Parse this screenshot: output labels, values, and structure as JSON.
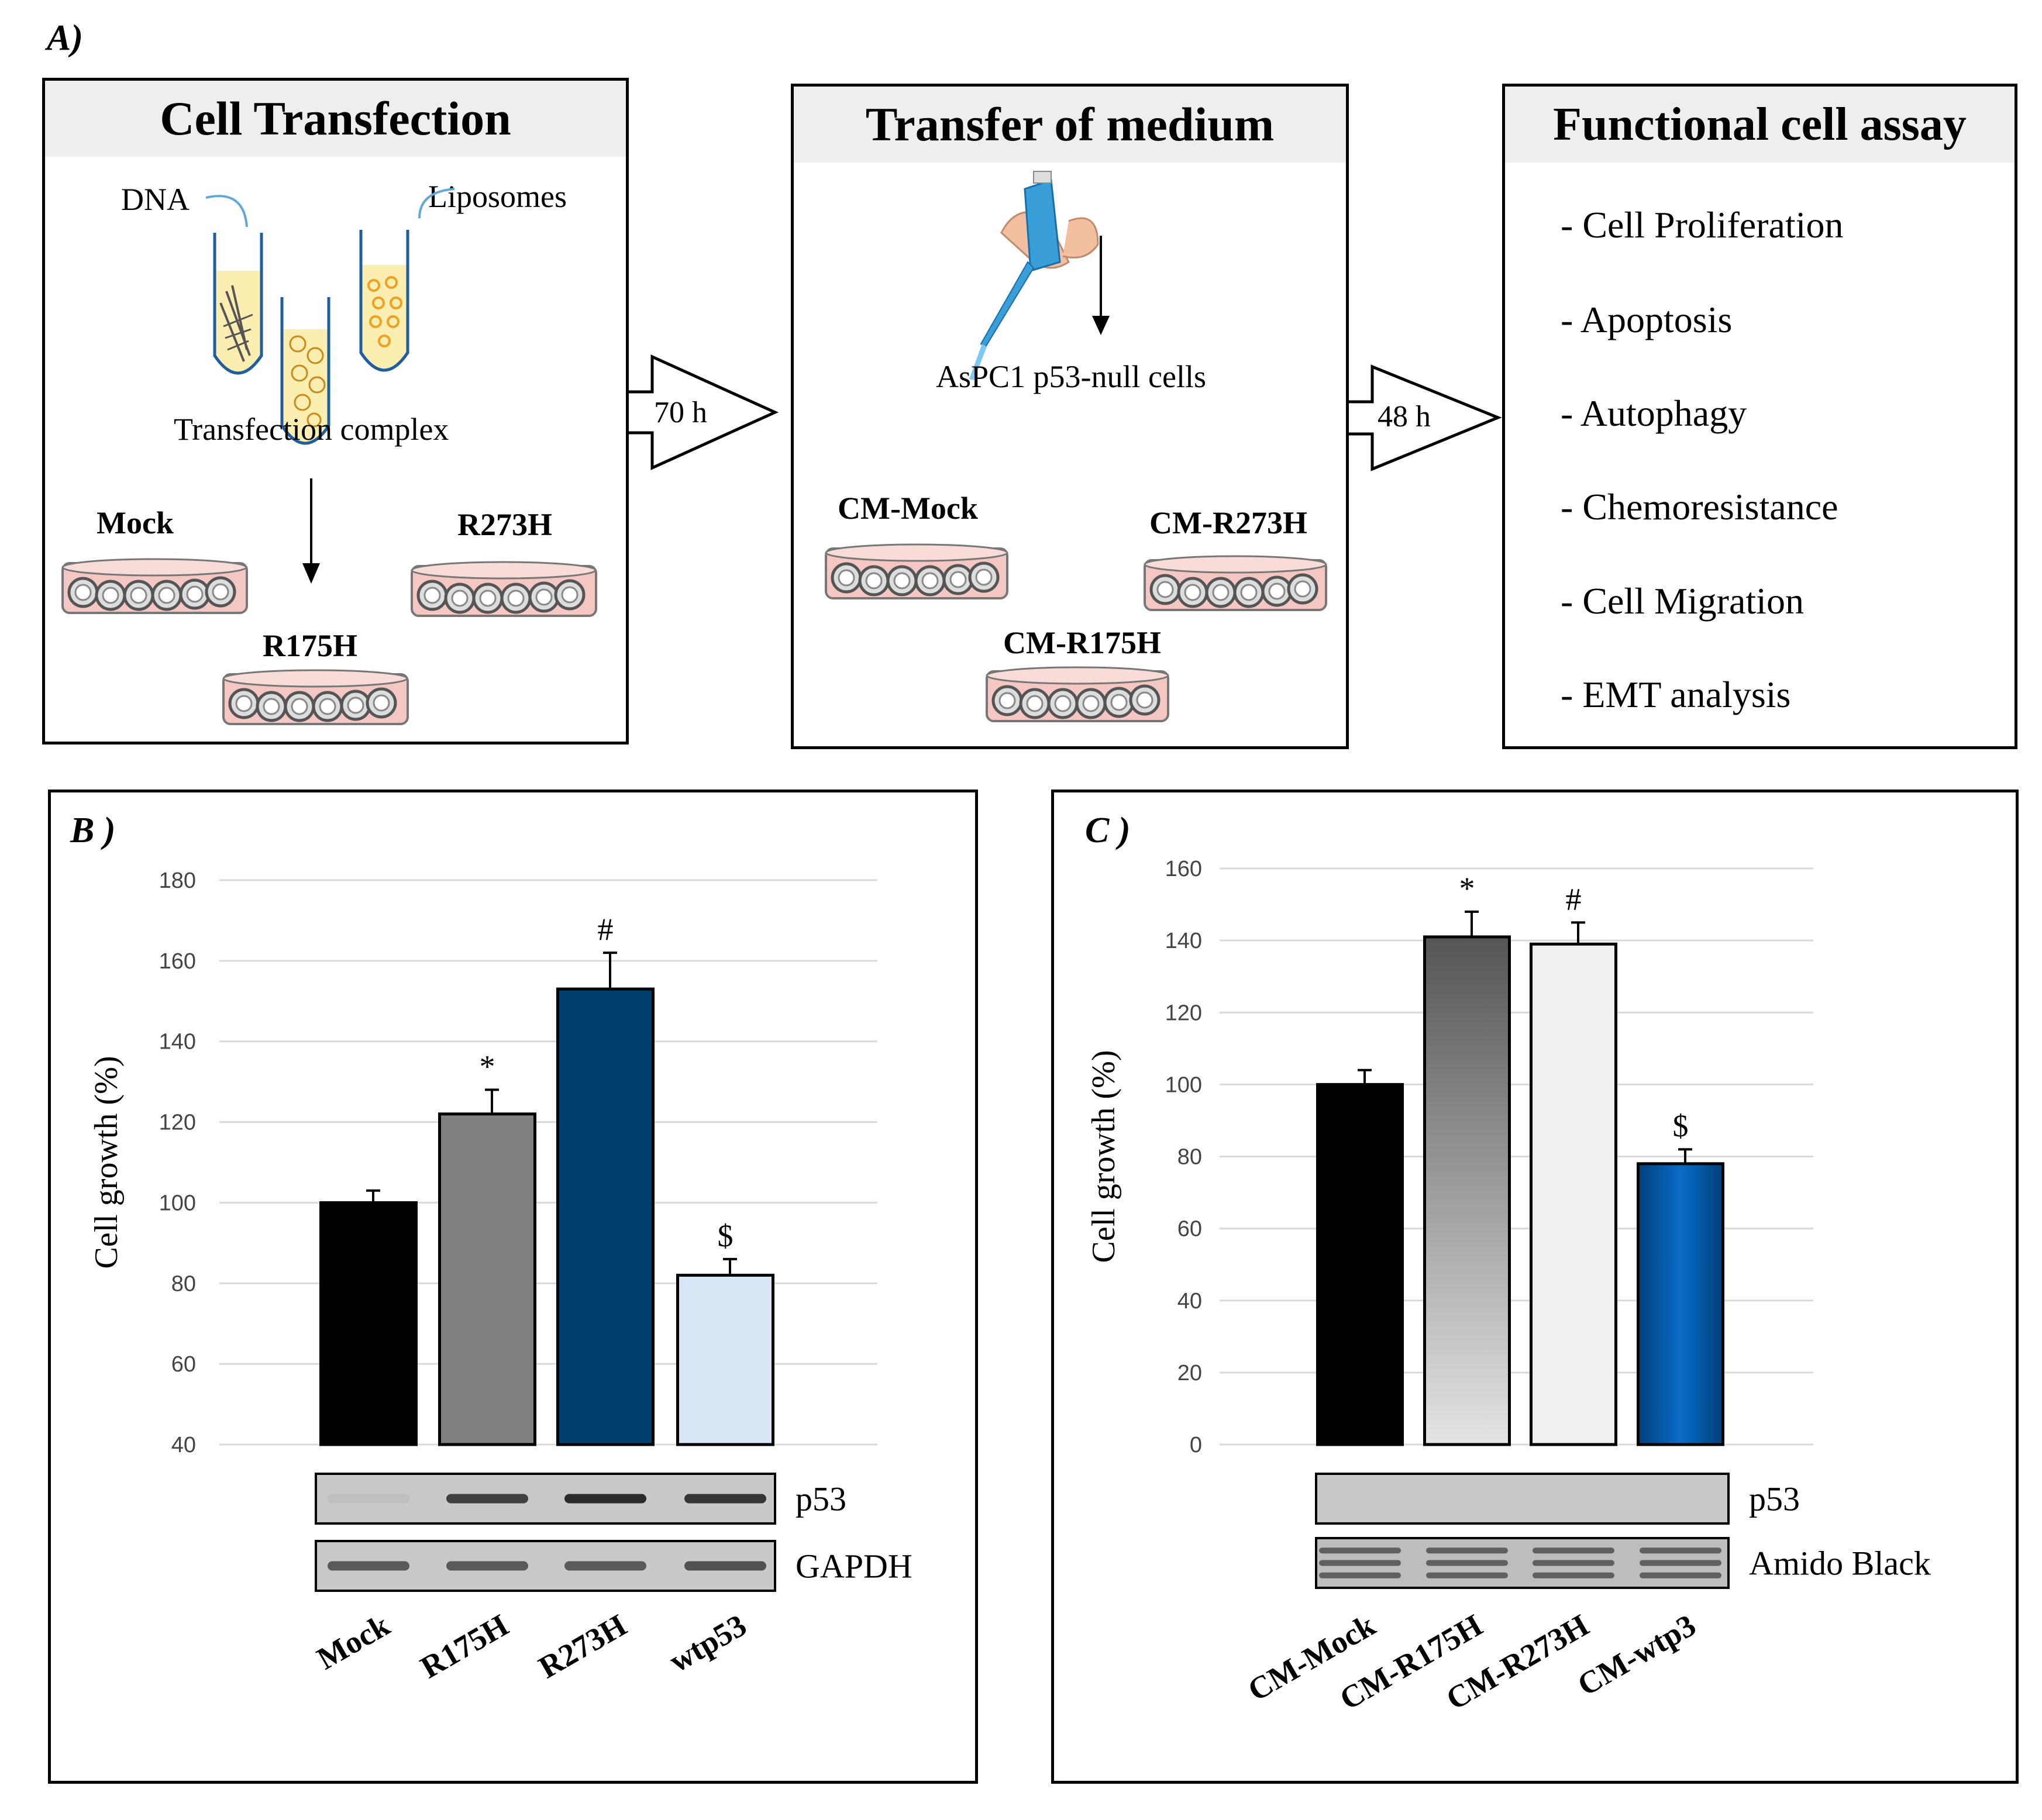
{
  "panel_a": {
    "letter": "A)",
    "step1": {
      "title": "Cell Transfection",
      "dna_label": "DNA",
      "liposomes_label": "Liposomes",
      "complex_label": "Transfection complex",
      "dish_labels": [
        "Mock",
        "R273H",
        "R175H"
      ]
    },
    "arrow1_label": "70 h",
    "step2": {
      "title": "Transfer of medium",
      "cells_label": "AsPC1 p53-null cells",
      "dish_labels": [
        "CM-Mock",
        "CM-R273H",
        "CM-R175H"
      ]
    },
    "arrow2_label": "48 h",
    "step3": {
      "title": "Functional cell assay",
      "items": [
        "- Cell Proliferation",
        "- Apoptosis",
        "- Autophagy",
        "- Chemoresistance",
        "- Cell Migration",
        "- EMT analysis"
      ]
    }
  },
  "colors": {
    "tube_fill": "#fbeeb0",
    "liposome": "#f0a020",
    "dish": "#f4c7c2",
    "pipette": "#3a9ed8"
  },
  "chart_data": [
    {
      "panel": "B )",
      "type": "bar",
      "ylabel": "Cell growth (%)",
      "ylim": [
        40,
        180
      ],
      "yticks": [
        40,
        60,
        80,
        100,
        120,
        140,
        160,
        180
      ],
      "categories": [
        "Mock",
        "R175H",
        "R273H",
        "wtp53"
      ],
      "values": [
        100,
        122,
        153,
        82
      ],
      "errors": [
        3,
        6,
        9,
        4
      ],
      "significance": [
        "",
        "*",
        "#",
        "$"
      ],
      "bar_colors": [
        "#000000",
        "#808080",
        "#003f6e",
        "#d9e6f5"
      ],
      "blots": [
        "p53",
        "GAPDH"
      ]
    },
    {
      "panel": "C )",
      "type": "bar",
      "ylabel": "Cell growth (%)",
      "ylim": [
        0,
        160
      ],
      "yticks": [
        0,
        20,
        40,
        60,
        80,
        100,
        120,
        140,
        160
      ],
      "categories": [
        "CM-Mock",
        "CM-R175H",
        "CM-R273H",
        "CM-wtp3"
      ],
      "values": [
        100,
        141,
        139,
        78
      ],
      "errors": [
        4,
        7,
        6,
        4
      ],
      "significance": [
        "",
        "*",
        "#",
        "$"
      ],
      "bar_colors": [
        "#000000",
        "gradient-gray",
        "#f0f0f0",
        "gradient-blue"
      ],
      "blots": [
        "p53",
        "Amido Black"
      ]
    }
  ]
}
